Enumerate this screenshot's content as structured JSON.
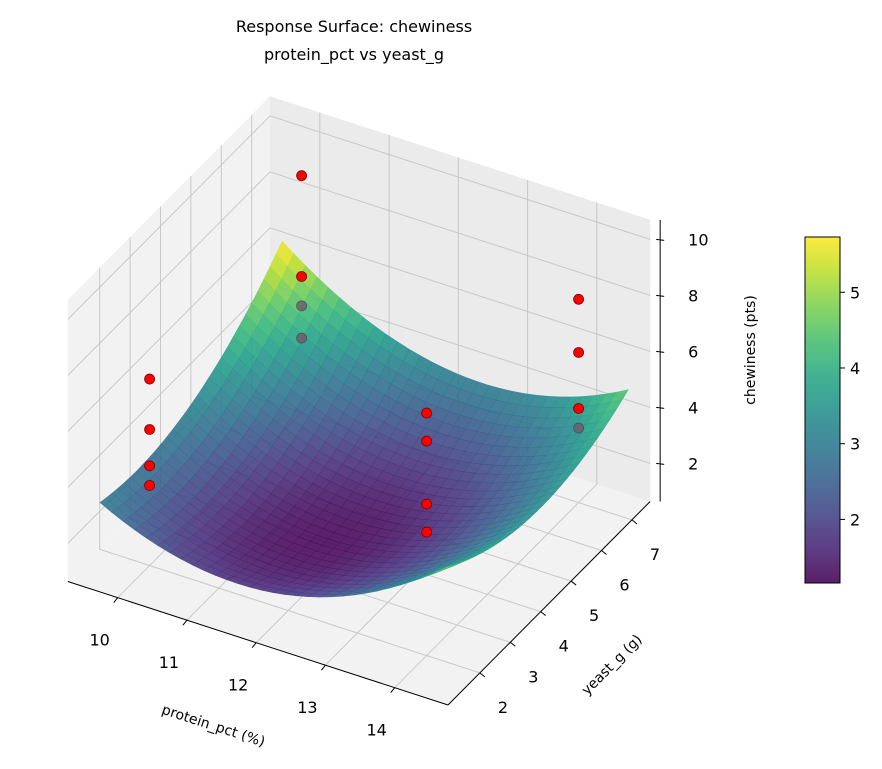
{
  "chart_data": {
    "type": "surface",
    "title": [
      "Response Surface: chewiness",
      "protein_pct vs yeast_g"
    ],
    "xlabel": "protein_pct (%)",
    "ylabel": "yeast_g (g)",
    "zlabel": "chewiness (pts)",
    "xlim": [
      9.28,
      14.77
    ],
    "ylim": [
      0.95,
      7.6
    ],
    "zlim": [
      0.64,
      10.7
    ],
    "xticks": [
      10,
      11,
      12,
      13,
      14
    ],
    "yticks": [
      2,
      3,
      4,
      5,
      6,
      7
    ],
    "zticks": [
      2,
      4,
      6,
      8,
      10
    ],
    "grid": true,
    "colormap": "viridis",
    "surface": {
      "x_range": [
        9.5,
        14.5
      ],
      "y_range": [
        1.5,
        7.5
      ],
      "center": [
        11.8,
        3.6
      ],
      "z_min": 1.2,
      "coef_x2": 0.33,
      "coef_y2": 0.13,
      "coef_xy": -0.1
    },
    "scatter": {
      "color": "#ff0000",
      "points": [
        {
          "x": 10,
          "y": 2,
          "z": 7.3
        },
        {
          "x": 10,
          "y": 2,
          "z": 5.5
        },
        {
          "x": 10,
          "y": 2,
          "z": 4.2
        },
        {
          "x": 10,
          "y": 2,
          "z": 3.5
        },
        {
          "x": 10,
          "y": 7,
          "z": 9.1
        },
        {
          "x": 10,
          "y": 7,
          "z": 5.5
        },
        {
          "x": 10,
          "y": 7,
          "z": 4.45
        },
        {
          "x": 10,
          "y": 7,
          "z": 3.3
        },
        {
          "x": 14,
          "y": 7,
          "z": 7.9
        },
        {
          "x": 14,
          "y": 7,
          "z": 6.0
        },
        {
          "x": 14,
          "y": 7,
          "z": 4.0
        },
        {
          "x": 14,
          "y": 7,
          "z": 3.3
        },
        {
          "x": 14,
          "y": 2,
          "z": 9.3
        },
        {
          "x": 14,
          "y": 2,
          "z": 8.3
        },
        {
          "x": 14,
          "y": 2,
          "z": 6.05
        },
        {
          "x": 14,
          "y": 2,
          "z": 5.05
        }
      ]
    },
    "colorbar": {
      "label": "chewiness (pts)",
      "range": [
        1.16,
        5.73
      ],
      "ticks": [
        2,
        3,
        4,
        5
      ]
    }
  }
}
